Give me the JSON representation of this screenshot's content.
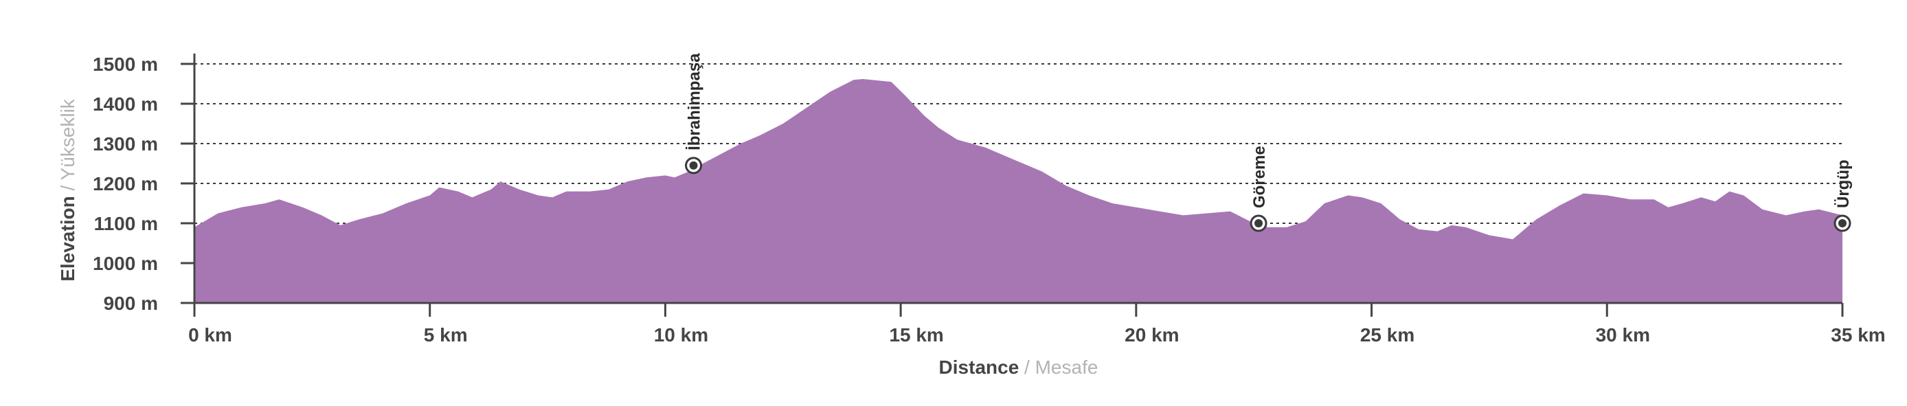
{
  "chart_data": {
    "type": "area",
    "xlabel": {
      "main": "Distance",
      "separator": " / ",
      "sub": "Mesafe"
    },
    "ylabel": {
      "main": "Elevation",
      "separator": " / ",
      "sub": "Yükseklik"
    },
    "xlim": [
      0,
      35
    ],
    "ylim": [
      900,
      1500
    ],
    "grid": true,
    "x_ticks": [
      {
        "value": 0,
        "label": "0 km"
      },
      {
        "value": 5,
        "label": "5 km"
      },
      {
        "value": 10,
        "label": "10 km"
      },
      {
        "value": 15,
        "label": "15 km"
      },
      {
        "value": 20,
        "label": "20 km"
      },
      {
        "value": 25,
        "label": "25 km"
      },
      {
        "value": 30,
        "label": "30 km"
      },
      {
        "value": 35,
        "label": "35 km"
      }
    ],
    "y_ticks": [
      {
        "value": 900,
        "label": "900 m"
      },
      {
        "value": 1000,
        "label": "1000 m"
      },
      {
        "value": 1100,
        "label": "1100 m"
      },
      {
        "value": 1200,
        "label": "1200 m"
      },
      {
        "value": 1300,
        "label": "1300 m"
      },
      {
        "value": 1400,
        "label": "1400 m"
      },
      {
        "value": 1500,
        "label": "1500 m"
      }
    ],
    "fill_color": "#a777b4",
    "grid_color": "#3a3a3a",
    "axis_color": "#454545",
    "profile": {
      "x": [
        0,
        0.5,
        1,
        1.5,
        1.8,
        2.3,
        2.7,
        3.1,
        3.5,
        4,
        4.5,
        5,
        5.2,
        5.6,
        5.9,
        6.3,
        6.5,
        6.9,
        7.3,
        7.6,
        7.9,
        8.4,
        8.8,
        9.2,
        9.6,
        10,
        10.2,
        10.5,
        10.8,
        11.2,
        11.6,
        12,
        12.5,
        13,
        13.5,
        14,
        14.2,
        14.8,
        15.1,
        15.5,
        15.8,
        16.2,
        16.8,
        17.4,
        18,
        18.5,
        19,
        19.5,
        20,
        20.5,
        21,
        21.5,
        22,
        22.5,
        22.8,
        23.2,
        23.6,
        24,
        24.5,
        24.8,
        25.2,
        25.6,
        26,
        26.4,
        26.7,
        27,
        27.5,
        28,
        28.5,
        29,
        29.5,
        30,
        30.5,
        31,
        31.3,
        31.6,
        32,
        32.3,
        32.6,
        32.9,
        33.3,
        33.8,
        34.2,
        34.5,
        35
      ],
      "y": [
        1090,
        1125,
        1140,
        1150,
        1160,
        1140,
        1120,
        1095,
        1110,
        1125,
        1150,
        1170,
        1190,
        1180,
        1165,
        1185,
        1205,
        1185,
        1170,
        1165,
        1180,
        1180,
        1185,
        1205,
        1215,
        1220,
        1215,
        1230,
        1250,
        1275,
        1300,
        1320,
        1350,
        1390,
        1430,
        1460,
        1462,
        1455,
        1420,
        1370,
        1340,
        1310,
        1290,
        1260,
        1230,
        1195,
        1170,
        1150,
        1140,
        1130,
        1120,
        1125,
        1130,
        1100,
        1090,
        1090,
        1105,
        1150,
        1170,
        1165,
        1150,
        1110,
        1085,
        1080,
        1095,
        1090,
        1070,
        1060,
        1110,
        1145,
        1175,
        1170,
        1160,
        1160,
        1140,
        1150,
        1165,
        1155,
        1180,
        1170,
        1135,
        1120,
        1130,
        1135,
        1120
      ]
    },
    "waypoints": [
      {
        "name": "İbrahimpaşa",
        "x": 10.6,
        "y": 1245
      },
      {
        "name": "Göreme",
        "x": 22.6,
        "y": 1100
      },
      {
        "name": "Ürgüp",
        "x": 35,
        "y": 1100
      }
    ]
  }
}
